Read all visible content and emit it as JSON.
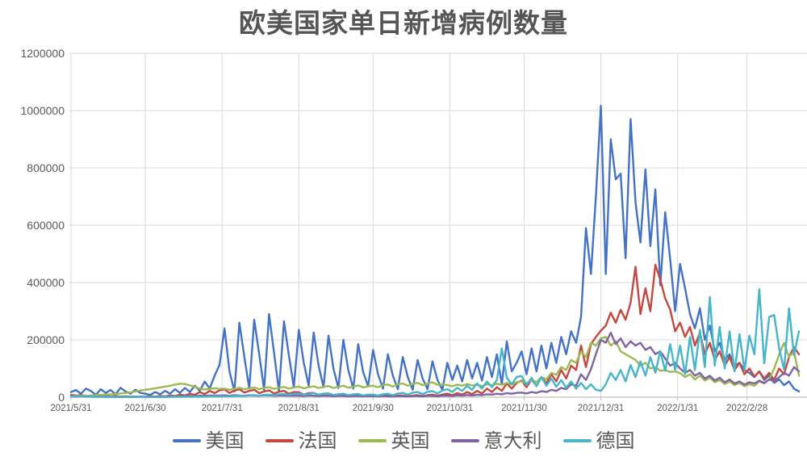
{
  "title": "欧美国家单日新增病例数量",
  "colors": {
    "background": "#FFFFFF",
    "text": "#595959",
    "grid": "#D9D9D9",
    "axis": "#BFBFBF",
    "title_text": "#555555"
  },
  "chart_data": {
    "type": "line",
    "title": "欧美国家单日新增病例数量",
    "xlabel": "",
    "ylabel": "",
    "grid": true,
    "legend_position": "bottom",
    "x_unit": "days_since_2021-05-31",
    "x_step_days": 2,
    "x_max_day": 294,
    "x_ticks": {
      "labels": [
        "2021/5/31",
        "2021/6/30",
        "2021/7/31",
        "2021/8/31",
        "2021/9/30",
        "2021/10/31",
        "2021/11/30",
        "2021/12/31",
        "2022/1/31",
        "2022/2/28"
      ],
      "days": [
        0,
        30,
        61,
        92,
        122,
        153,
        183,
        214,
        245,
        273
      ]
    },
    "y_axis": {
      "min": 0,
      "max": 1200000,
      "step": 200000,
      "tick_labels": [
        "0",
        "200000",
        "400000",
        "600000",
        "800000",
        "1000000",
        "1200000"
      ]
    },
    "series": [
      {
        "id": "us",
        "name": "美国",
        "color": "#4472C4",
        "values": [
          18000,
          25000,
          12000,
          30000,
          22000,
          8000,
          28000,
          15000,
          25000,
          10000,
          33000,
          20000,
          12000,
          26000,
          15000,
          12000,
          8000,
          18000,
          10000,
          22000,
          12000,
          28000,
          15000,
          32000,
          18000,
          40000,
          22000,
          55000,
          30000,
          75000,
          113000,
          240000,
          90000,
          20000,
          260000,
          140000,
          30000,
          270000,
          150000,
          25000,
          290000,
          155000,
          20000,
          265000,
          145000,
          35000,
          235000,
          120000,
          40000,
          225000,
          110000,
          35000,
          215000,
          100000,
          32000,
          200000,
          95000,
          30000,
          185000,
          88000,
          38000,
          165000,
          80000,
          30000,
          150000,
          75000,
          28000,
          140000,
          70000,
          26000,
          130000,
          65000,
          28000,
          125000,
          60000,
          26000,
          120000,
          60000,
          110000,
          55000,
          130000,
          65000,
          120000,
          58000,
          140000,
          70000,
          150000,
          45000,
          195000,
          90000,
          120000,
          160000,
          80000,
          170000,
          90000,
          180000,
          100000,
          190000,
          120000,
          210000,
          150000,
          230000,
          190000,
          280000,
          590000,
          430000,
          700000,
          1017000,
          430000,
          900000,
          760000,
          780000,
          485000,
          970000,
          680000,
          540000,
          795000,
          527000,
          725000,
          390000,
          645000,
          480000,
          300000,
          465000,
          380000,
          290000,
          240000,
          310000,
          200000,
          250000,
          160000,
          190000,
          130000,
          150000,
          110000,
          120000,
          95000,
          85000,
          70000,
          90000,
          60000,
          75000,
          50000,
          62000,
          42000,
          55000,
          30000,
          20000
        ]
      },
      {
        "id": "france",
        "name": "法国",
        "color": "#C5473E",
        "values": [
          8000,
          6000,
          7000,
          5000,
          4000,
          6000,
          3000,
          5000,
          2000,
          4000,
          2000,
          3000,
          2000,
          2000,
          2000,
          2000,
          3000,
          2000,
          4000,
          3000,
          6000,
          4000,
          9000,
          6000,
          12000,
          8000,
          18000,
          11000,
          22000,
          14000,
          24000,
          27000,
          15000,
          23000,
          28000,
          16000,
          22000,
          26000,
          14000,
          20000,
          24000,
          13000,
          19000,
          22000,
          12000,
          18000,
          17000,
          9000,
          14000,
          15000,
          8000,
          12000,
          13000,
          7000,
          10000,
          11000,
          6000,
          9000,
          9000,
          5000,
          8000,
          7000,
          4000,
          6000,
          7000,
          4000,
          6000,
          6000,
          3000,
          6000,
          7000,
          4000,
          7000,
          9000,
          5000,
          9000,
          12000,
          7000,
          14000,
          9000,
          18000,
          11000,
          22000,
          13000,
          30000,
          18000,
          35000,
          22000,
          48000,
          30000,
          50000,
          58000,
          35000,
          62000,
          40000,
          70000,
          48000,
          80000,
          55000,
          95000,
          65000,
          110000,
          95000,
          180000,
          105000,
          185000,
          210000,
          232000,
          250000,
          295000,
          260000,
          305000,
          270000,
          330000,
          455000,
          290000,
          380000,
          300000,
          462000,
          410000,
          345000,
          305000,
          230000,
          260000,
          210000,
          245000,
          180000,
          225000,
          150000,
          190000,
          130000,
          160000,
          110000,
          140000,
          95000,
          120000,
          80000,
          100000,
          72000,
          90000,
          65000,
          85000,
          60000,
          100000,
          80000,
          140000,
          175000,
          150000
        ]
      },
      {
        "id": "uk",
        "name": "英国",
        "color": "#9CB953",
        "values": [
          3000,
          4000,
          5000,
          5000,
          6000,
          7000,
          8000,
          9000,
          10000,
          11000,
          13000,
          15000,
          17000,
          20000,
          23000,
          26000,
          28000,
          31000,
          34000,
          37000,
          40000,
          44000,
          47000,
          46000,
          41000,
          36000,
          30000,
          27000,
          29000,
          31000,
          29000,
          30000,
          26000,
          29000,
          33000,
          28000,
          31000,
          34000,
          28000,
          32000,
          35000,
          29000,
          33000,
          36000,
          30000,
          34000,
          37000,
          31000,
          35000,
          38000,
          32000,
          36000,
          39000,
          32000,
          36000,
          40000,
          33000,
          37000,
          41000,
          34000,
          38000,
          40000,
          35000,
          42000,
          44000,
          37000,
          45000,
          48000,
          40000,
          47000,
          50000,
          42000,
          48000,
          52000,
          43000,
          45000,
          42000,
          38000,
          44000,
          40000,
          46000,
          41000,
          43000,
          39000,
          45000,
          42000,
          47000,
          43000,
          50000,
          44000,
          52000,
          55000,
          48000,
          60000,
          53000,
          70000,
          62000,
          85000,
          78000,
          105000,
          95000,
          130000,
          120000,
          160000,
          140000,
          190000,
          180000,
          205000,
          210000,
          180000,
          195000,
          160000,
          150000,
          140000,
          130000,
          110000,
          120000,
          100000,
          105000,
          92000,
          95000,
          88000,
          90000,
          84000,
          70000,
          80000,
          62000,
          75000,
          58000,
          68000,
          52000,
          60000,
          46000,
          55000,
          42000,
          50000,
          38000,
          45000,
          40000,
          55000,
          48000,
          62000,
          100000,
          150000,
          190000,
          140000,
          160000,
          75000
        ]
      },
      {
        "id": "italy",
        "name": "意大利",
        "color": "#8064A2",
        "values": [
          3000,
          2000,
          2000,
          2000,
          2000,
          1500,
          2000,
          1200,
          1500,
          1000,
          1200,
          900,
          1000,
          800,
          900,
          800,
          700,
          800,
          1500,
          1200,
          2000,
          2500,
          3000,
          3500,
          4000,
          4500,
          5000,
          5000,
          5500,
          6000,
          6000,
          6500,
          5000,
          7000,
          6000,
          5000,
          7000,
          6000,
          5000,
          7000,
          6500,
          5000,
          6000,
          6000,
          5000,
          6000,
          5500,
          4000,
          6000,
          5000,
          4000,
          5000,
          5000,
          3500,
          5000,
          4500,
          3000,
          4000,
          4000,
          3000,
          4000,
          3500,
          2500,
          4000,
          3000,
          2500,
          4000,
          3500,
          2500,
          4000,
          4000,
          3000,
          5000,
          4500,
          3000,
          5000,
          5500,
          4000,
          6500,
          5000,
          7500,
          6000,
          8500,
          7000,
          10000,
          9000,
          12000,
          10000,
          14000,
          12000,
          15000,
          16000,
          13000,
          18000,
          15000,
          21000,
          18000,
          26000,
          22000,
          32000,
          28000,
          45000,
          40000,
          80000,
          60000,
          98000,
          150000,
          200000,
          190000,
          225000,
          185000,
          205000,
          175000,
          195000,
          180000,
          190000,
          165000,
          175000,
          150000,
          160000,
          135000,
          110000,
          120000,
          100000,
          85000,
          95000,
          75000,
          85000,
          65000,
          75000,
          58000,
          68000,
          52000,
          62000,
          48000,
          55000,
          44000,
          52000,
          48000,
          58000,
          50000,
          62000,
          55000,
          70000,
          85000,
          75000,
          105000,
          90000
        ]
      },
      {
        "id": "germany",
        "name": "德国",
        "color": "#46B4CB",
        "values": [
          3000,
          2600,
          2200,
          1800,
          1500,
          1200,
          1000,
          900,
          800,
          700,
          600,
          600,
          500,
          500,
          600,
          600,
          500,
          600,
          700,
          800,
          900,
          1100,
          1300,
          1500,
          1400,
          1600,
          1800,
          2000,
          2200,
          2400,
          2600,
          3000,
          3400,
          4200,
          5000,
          4400,
          6200,
          7000,
          5200,
          8200,
          9000,
          6400,
          10000,
          11000,
          8000,
          12000,
          13000,
          8000,
          11000,
          14000,
          9000,
          12000,
          13000,
          8000,
          10000,
          12000,
          7000,
          10000,
          11000,
          6000,
          9000,
          9000,
          6000,
          10000,
          12000,
          7000,
          13000,
          15000,
          9000,
          16000,
          18000,
          11000,
          19000,
          21000,
          13000,
          23000,
          28000,
          18000,
          33000,
          22000,
          40000,
          26000,
          48000,
          30000,
          55000,
          35000,
          60000,
          170000,
          68000,
          45000,
          70000,
          74000,
          42000,
          68000,
          38000,
          70000,
          40000,
          65000,
          36000,
          60000,
          33000,
          55000,
          30000,
          50000,
          28000,
          45000,
          26000,
          22000,
          45000,
          85000,
          60000,
          95000,
          55000,
          112000,
          70000,
          125000,
          75000,
          140000,
          85000,
          160000,
          92000,
          185000,
          95000,
          180000,
          80000,
          210000,
          95000,
          235000,
          105000,
          350000,
          110000,
          245000,
          100000,
          230000,
          90000,
          220000,
          95000,
          215000,
          150000,
          377000,
          118000,
          280000,
          287000,
          170000,
          96000,
          310000,
          146000,
          230000
        ]
      }
    ]
  }
}
